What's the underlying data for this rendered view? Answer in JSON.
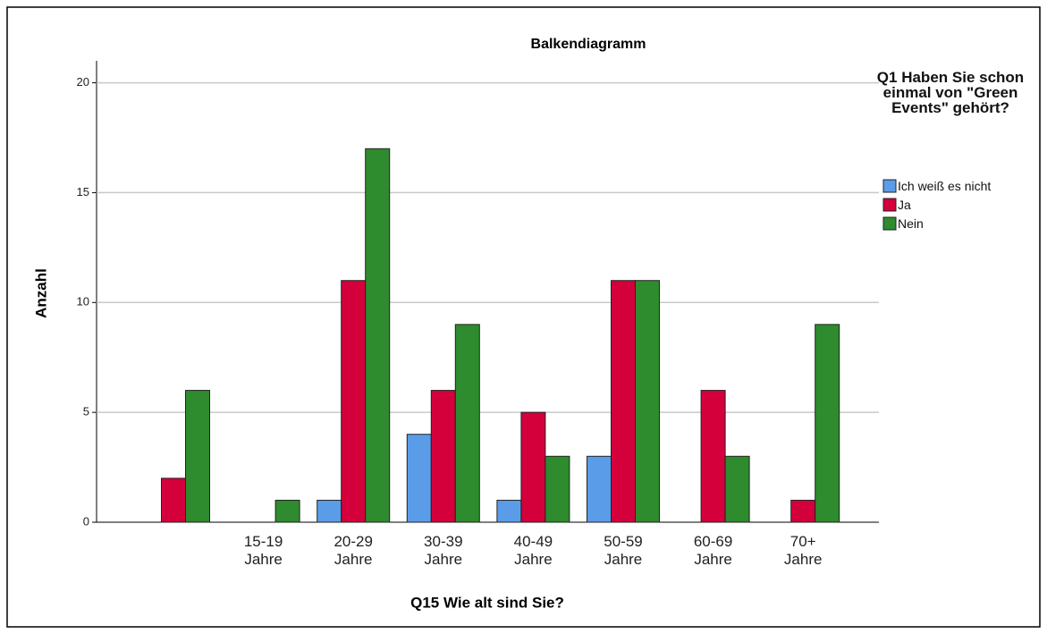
{
  "chart_data": {
    "type": "bar",
    "title": "Balkendiagramm",
    "x_label": "Q15 Wie alt sind Sie?",
    "y_label": "Anzahl",
    "legend_title": "Q1 Haben Sie schon einmal von \"Green Events\" gehört?",
    "categories": [
      null,
      "15-19 Jahre",
      "20-29 Jahre",
      "30-39 Jahre",
      "40-49 Jahre",
      "50-59 Jahre",
      "60-69 Jahre",
      "70+ Jahre"
    ],
    "series": [
      {
        "name": "Ich weiß es nicht",
        "color": "#5b9ce8",
        "values": [
          null,
          null,
          1,
          4,
          1,
          3,
          null,
          null
        ]
      },
      {
        "name": "Ja",
        "color": "#d4003c",
        "values": [
          2,
          null,
          11,
          6,
          5,
          11,
          6,
          1
        ]
      },
      {
        "name": "Nein",
        "color": "#2e8b2e",
        "values": [
          6,
          1,
          17,
          9,
          3,
          11,
          3,
          9
        ]
      }
    ],
    "ylim": [
      0,
      21
    ],
    "yticks": [
      0,
      5,
      10,
      15,
      20
    ],
    "grid": true,
    "legend": "right"
  }
}
